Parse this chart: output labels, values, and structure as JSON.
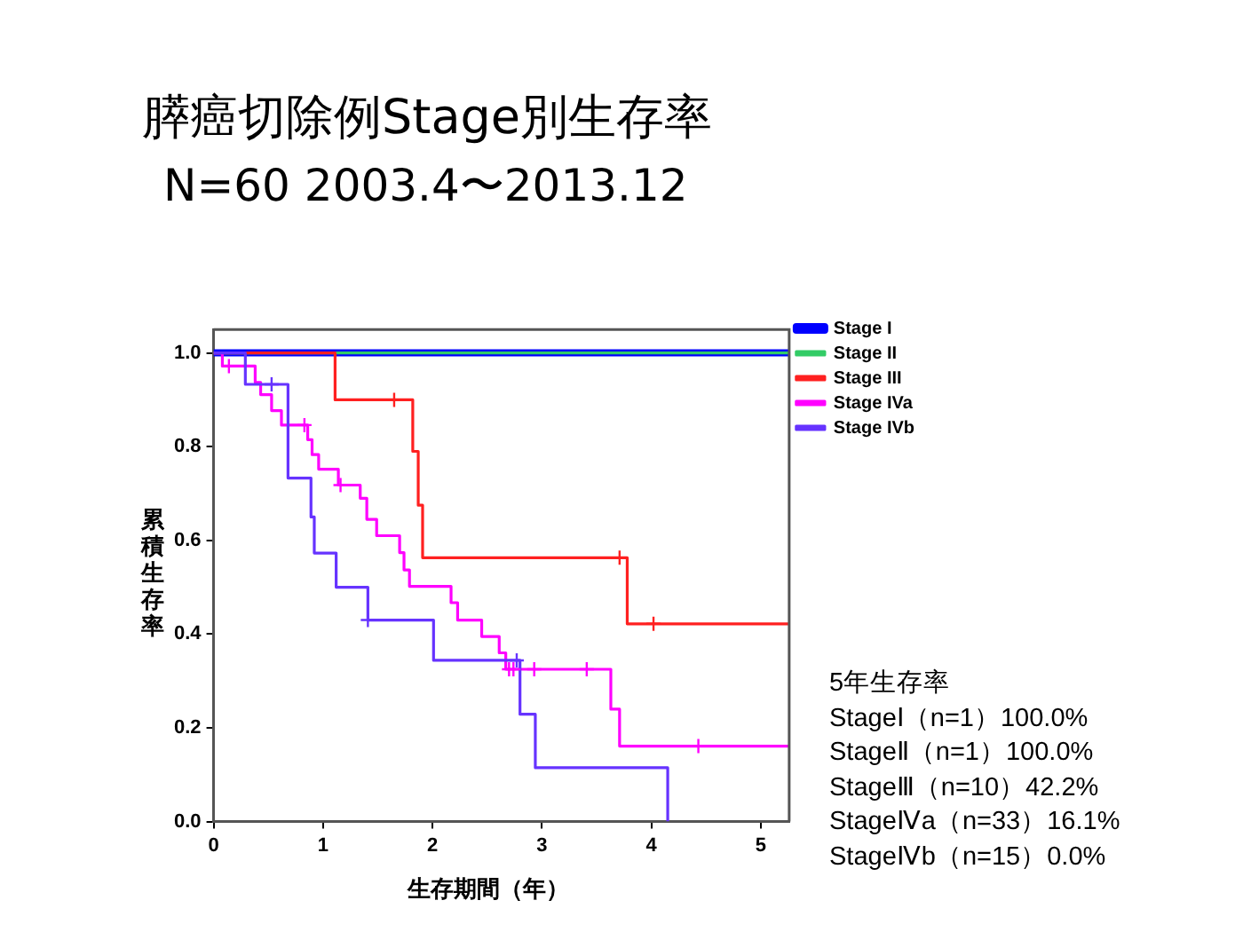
{
  "chart_data": {
    "type": "step",
    "title": "膵癌切除例Stage別生存率",
    "subtitle": "N=60  2003.4〜2013.12",
    "xlabel": "生存期間（年）",
    "ylabel": "累積生存率",
    "annotations": [
      "5年生存率",
      "StageⅠ（n=1）100.0%",
      "StageⅡ（n=1）100.0%",
      "StageⅢ（n=10）42.2%",
      "StageⅣa（n=33）16.1%",
      "StageⅣb（n=15）0.0%"
    ],
    "xlim": [
      0,
      5.26
    ],
    "ylim": [
      0,
      1.05
    ],
    "xticks": [
      0,
      1,
      2,
      3,
      4,
      5
    ],
    "yticks": [
      {
        "value": 0,
        "label": "0.0"
      },
      {
        "value": 0.2,
        "label": "0.2"
      },
      {
        "value": 0.4,
        "label": "0.4"
      },
      {
        "value": 0.6,
        "label": "0.6"
      },
      {
        "value": 0.8,
        "label": "0.8"
      },
      {
        "value": 1,
        "label": "1.0"
      }
    ],
    "grid": false,
    "legend": "right",
    "marker": "none",
    "line_style": "solid",
    "series": [
      {
        "name": "Stage I",
        "color": "#0000ff",
        "x": [
          0,
          5.26
        ],
        "values": [
          1,
          1
        ]
      },
      {
        "name": "Stage II",
        "color": "#33cc66",
        "x": [
          0,
          5.26
        ],
        "values": [
          1,
          1
        ]
      },
      {
        "name": "Stage III",
        "color": "#ff2020",
        "x": [
          0,
          1.11,
          1.82,
          1.87,
          1.91,
          3.78,
          5.26
        ],
        "values": [
          1,
          0.9,
          0.79,
          0.675,
          0.563,
          0.422,
          0.422
        ]
      },
      {
        "name": "Stage IVa",
        "color": "#ff00ff",
        "x": [
          0,
          0.08,
          0.38,
          0.43,
          0.53,
          0.62,
          0.86,
          0.9,
          0.96,
          1.14,
          1.34,
          1.4,
          1.49,
          1.7,
          1.74,
          1.79,
          2.17,
          2.23,
          2.45,
          2.61,
          2.67,
          3.63,
          3.71,
          5.26
        ],
        "values": [
          1,
          0.972,
          0.937,
          0.911,
          0.877,
          0.846,
          0.815,
          0.783,
          0.752,
          0.718,
          0.69,
          0.645,
          0.61,
          0.574,
          0.537,
          0.502,
          0.467,
          0.43,
          0.395,
          0.36,
          0.325,
          0.24,
          0.161,
          0.161
        ]
      },
      {
        "name": "Stage IVb",
        "color": "#6633ff",
        "x": [
          0,
          0.29,
          0.68,
          0.89,
          0.92,
          1.12,
          1.41,
          2.01,
          2.8,
          2.94,
          4.15
        ],
        "values": [
          1,
          0.933,
          0.733,
          0.65,
          0.573,
          0.5,
          0.43,
          0.344,
          0.229,
          0.115,
          0
        ]
      },
      {
        "type": "scatter",
        "marker": "cross",
        "color": "#ff2020",
        "x": [
          1.65,
          3.71,
          4.02
        ],
        "values": [
          0.9,
          0.563,
          0.422
        ]
      },
      {
        "type": "scatter",
        "marker": "cross",
        "color": "#ff00ff",
        "x": [
          0.14,
          0.83,
          1.16,
          2.7,
          2.74,
          2.93,
          3.41,
          4.43
        ],
        "values": [
          0.972,
          0.846,
          0.718,
          0.325,
          0.325,
          0.325,
          0.325,
          0.161
        ]
      },
      {
        "type": "scatter",
        "marker": "cross",
        "color": "#6633ff",
        "x": [
          0.53,
          1.41,
          2.77
        ],
        "values": [
          0.933,
          0.43,
          0.344
        ]
      }
    ]
  }
}
